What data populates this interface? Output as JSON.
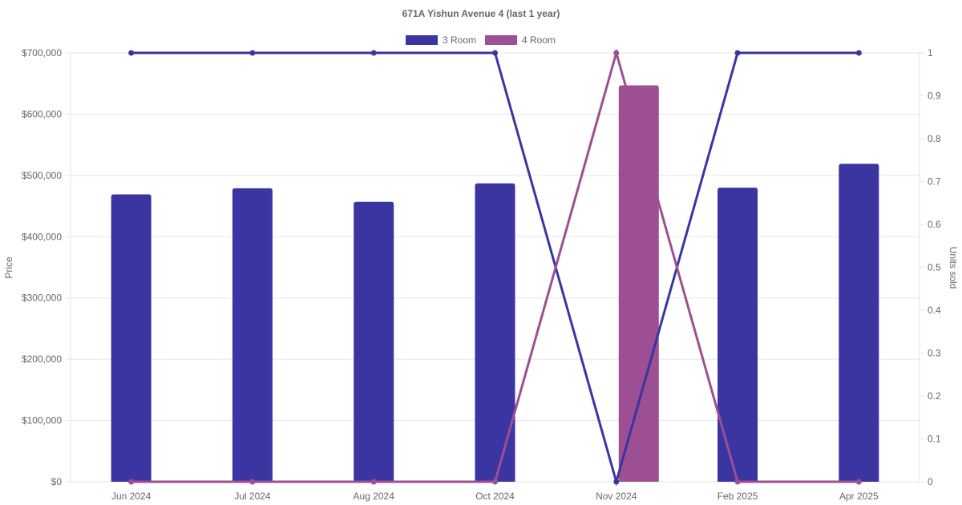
{
  "chart_data": {
    "type": "bar",
    "title": "671A Yishun Avenue 4 (last 1 year)",
    "categories": [
      "Jun 2024",
      "Jul 2024",
      "Aug 2024",
      "Oct 2024",
      "Nov 2024",
      "Feb 2025",
      "Apr 2025"
    ],
    "y_left": {
      "label": "Price",
      "min": 0,
      "max": 700000,
      "ticks": [
        "$0",
        "$100,000",
        "$200,000",
        "$300,000",
        "$400,000",
        "$500,000",
        "$600,000",
        "$700,000"
      ]
    },
    "y_right": {
      "label": "Units sold",
      "min": 0,
      "max": 1,
      "ticks": [
        "0",
        "0.1",
        "0.2",
        "0.3",
        "0.4",
        "0.5",
        "0.6",
        "0.7",
        "0.8",
        "0.9",
        "1"
      ]
    },
    "grid": true,
    "legend_position": "top-center",
    "series": [
      {
        "name": "3 Room",
        "color": "#3a35a0",
        "price": [
          469000,
          479000,
          457000,
          487000,
          null,
          480000,
          519000
        ],
        "units_sold": [
          1,
          1,
          1,
          1,
          0,
          1,
          1
        ]
      },
      {
        "name": "4 Room",
        "color": "#9c4f93",
        "price": [
          null,
          null,
          null,
          null,
          647000,
          null,
          null
        ],
        "units_sold": [
          0,
          0,
          0,
          0,
          1,
          0,
          0
        ]
      }
    ]
  }
}
